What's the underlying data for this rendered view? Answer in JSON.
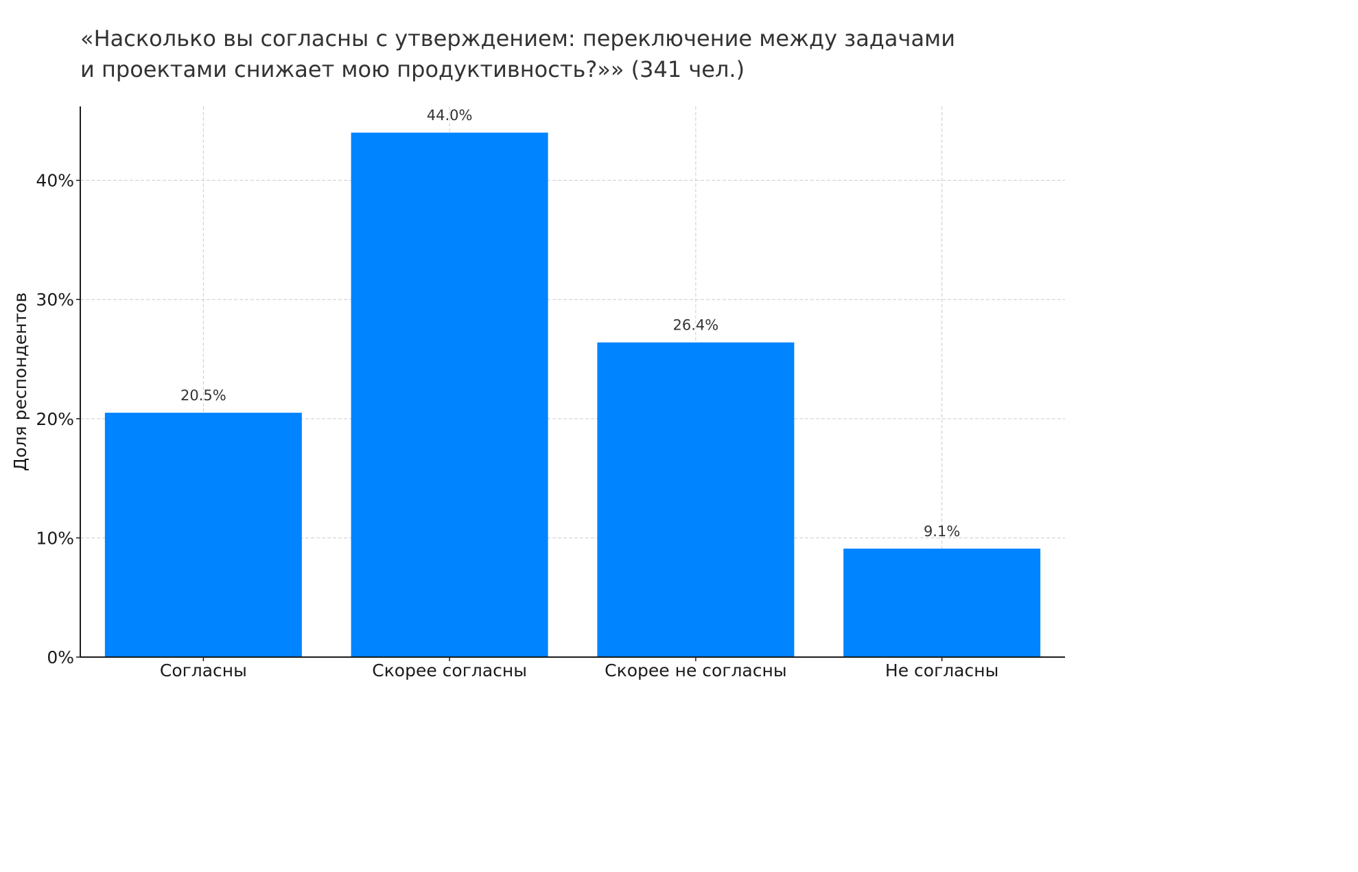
{
  "chart_data": {
    "type": "bar",
    "title_lines": [
      "«Насколько вы согласны с утверждением: переключение между задачами",
      "и проектами снижает мою продуктивность?»» (341 чел.)"
    ],
    "categories": [
      "Согласны",
      "Скорее согласны",
      "Скорее не согласны",
      "Не согласны"
    ],
    "values": [
      20.5,
      44.0,
      26.4,
      9.1
    ],
    "value_labels": [
      "20.5%",
      "44.0%",
      "26.4%",
      "9.1%"
    ],
    "xlabel": "",
    "ylabel": "Доля респондентов",
    "ylim": [
      0,
      46.2
    ],
    "yticks": [
      0,
      10,
      20,
      30,
      40
    ],
    "ytick_labels": [
      "0%",
      "10%",
      "20%",
      "30%",
      "40%"
    ],
    "grid": true,
    "bar_color": "#0084FF",
    "grid_color": "#cccccc",
    "axis_color": "#1a1a1a"
  }
}
